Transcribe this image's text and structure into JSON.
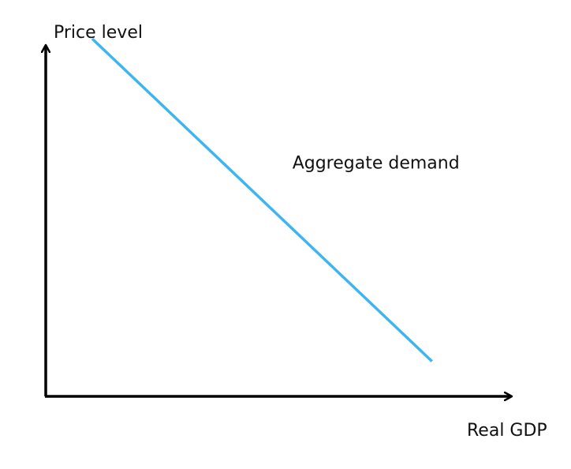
{
  "chart_data": {
    "type": "line",
    "title": "",
    "xlabel": "Real GDP",
    "ylabel": "Price level",
    "xlim": [
      0,
      10
    ],
    "ylim": [
      0,
      10
    ],
    "grid": false,
    "axis_ticks": false,
    "series": [
      {
        "name": "Aggregate demand",
        "x": [
          1,
          8.3
        ],
        "y": [
          10.2,
          1.0
        ],
        "color": "#3db5f0"
      }
    ],
    "annotations": [
      {
        "text": "Aggregate demand",
        "x": 5.3,
        "y": 6.5
      }
    ],
    "axis_color": "#000000"
  }
}
